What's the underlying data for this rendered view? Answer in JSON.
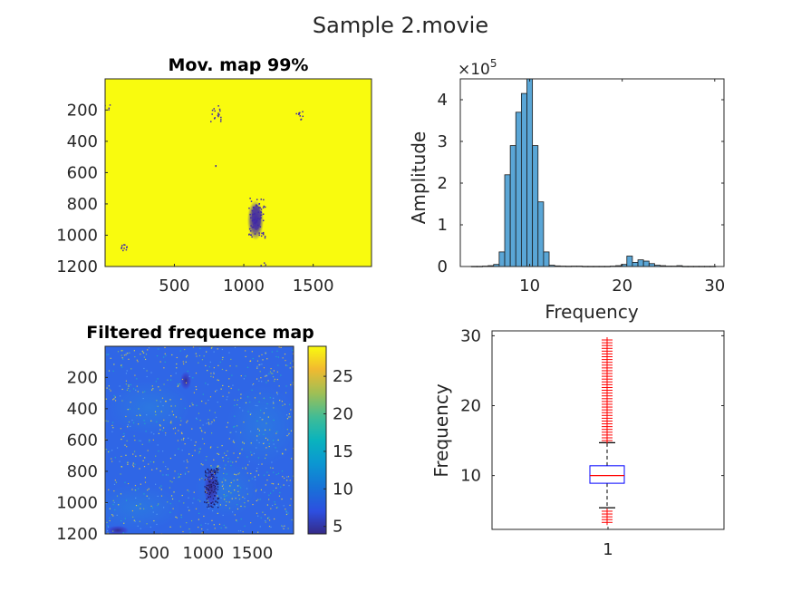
{
  "figure": {
    "title": "Sample 2.movie"
  },
  "chart_data": [
    {
      "type": "heatmap",
      "title": "Mov. map 99%",
      "xticks": [
        500,
        1000,
        1500
      ],
      "yticks": [
        200,
        400,
        600,
        800,
        1000,
        1200
      ],
      "xlim": [
        1,
        1920
      ],
      "ylim": [
        1,
        1200
      ],
      "y_reversed": true,
      "colors": {
        "background": "#f9fb0e",
        "movement": "#3e26a8"
      }
    },
    {
      "type": "bar",
      "subtype": "histogram",
      "xlabel": "Frequency",
      "ylabel": "Amplitude",
      "y_exponent_label": "×10",
      "y_exponent": "5",
      "xlim": [
        2.5,
        31
      ],
      "ylim": [
        0,
        4.5
      ],
      "xticks": [
        10,
        20,
        30
      ],
      "yticks": [
        0,
        1,
        2,
        3,
        4
      ],
      "bar_color": "#5aa6d6",
      "bin_width": 0.6,
      "x": [
        4.0,
        4.6,
        5.2,
        5.8,
        6.4,
        7.0,
        7.6,
        8.2,
        8.8,
        9.4,
        10.0,
        10.6,
        11.2,
        11.8,
        12.4,
        13.0,
        13.6,
        14.2,
        14.8,
        15.4,
        16.0,
        16.6,
        17.2,
        17.8,
        18.4,
        19.0,
        19.6,
        20.2,
        20.8,
        21.4,
        22.0,
        22.6,
        23.2,
        23.8,
        24.4,
        25.0,
        25.6,
        26.2,
        26.8,
        27.4,
        28.0,
        28.6,
        29.2,
        29.8
      ],
      "values": [
        0.005,
        0.005,
        0.01,
        0.02,
        0.05,
        0.35,
        2.2,
        2.9,
        3.7,
        4.15,
        4.5,
        2.9,
        1.55,
        0.35,
        0.03,
        0.015,
        0.01,
        0.008,
        0.01,
        0.01,
        0.005,
        0.005,
        0.005,
        0.005,
        0.005,
        0.01,
        0.02,
        0.05,
        0.25,
        0.1,
        0.16,
        0.13,
        0.07,
        0.03,
        0.02,
        0.01,
        0.01,
        0.02,
        0.005,
        0.005,
        0.005,
        0.005,
        0.005,
        0.005
      ]
    },
    {
      "type": "heatmap",
      "title": "Filtered frequence map",
      "xticks": [
        500,
        1000,
        1500
      ],
      "yticks": [
        200,
        400,
        600,
        800,
        1000,
        1200
      ],
      "xlim": [
        1,
        1920
      ],
      "ylim": [
        1,
        1200
      ],
      "y_reversed": true,
      "colorbar": {
        "ticks": [
          5,
          10,
          15,
          20,
          25
        ],
        "range": [
          4,
          29
        ],
        "colormap": "parula"
      }
    },
    {
      "type": "box",
      "ylabel": "Frequency",
      "categories": [
        "1"
      ],
      "ylim": [
        2.3,
        30.7
      ],
      "yticks": [
        10,
        20,
        30
      ],
      "median": 10.0,
      "q1": 8.9,
      "q3": 11.4,
      "whisker_low": 5.4,
      "whisker_high": 14.7,
      "outliers_low": [
        3.3,
        3.7,
        4.1,
        4.5,
        4.9
      ],
      "outliers_high": [
        15.0,
        15.4,
        15.8,
        16.2,
        16.6,
        17.0,
        17.4,
        17.8,
        18.2,
        18.6,
        19.0,
        19.4,
        19.8,
        20.2,
        20.6,
        21.0,
        21.4,
        21.8,
        22.2,
        22.6,
        23.0,
        23.4,
        23.8,
        24.2,
        24.6,
        25.0,
        25.4,
        25.8,
        26.2,
        26.6,
        27.0,
        27.4,
        27.8,
        28.2,
        28.6,
        29.0,
        29.4
      ],
      "colors": {
        "box": "#0000ff",
        "median": "#ff0000",
        "whisker": "#000000",
        "outlier": "#ff0000"
      }
    }
  ]
}
